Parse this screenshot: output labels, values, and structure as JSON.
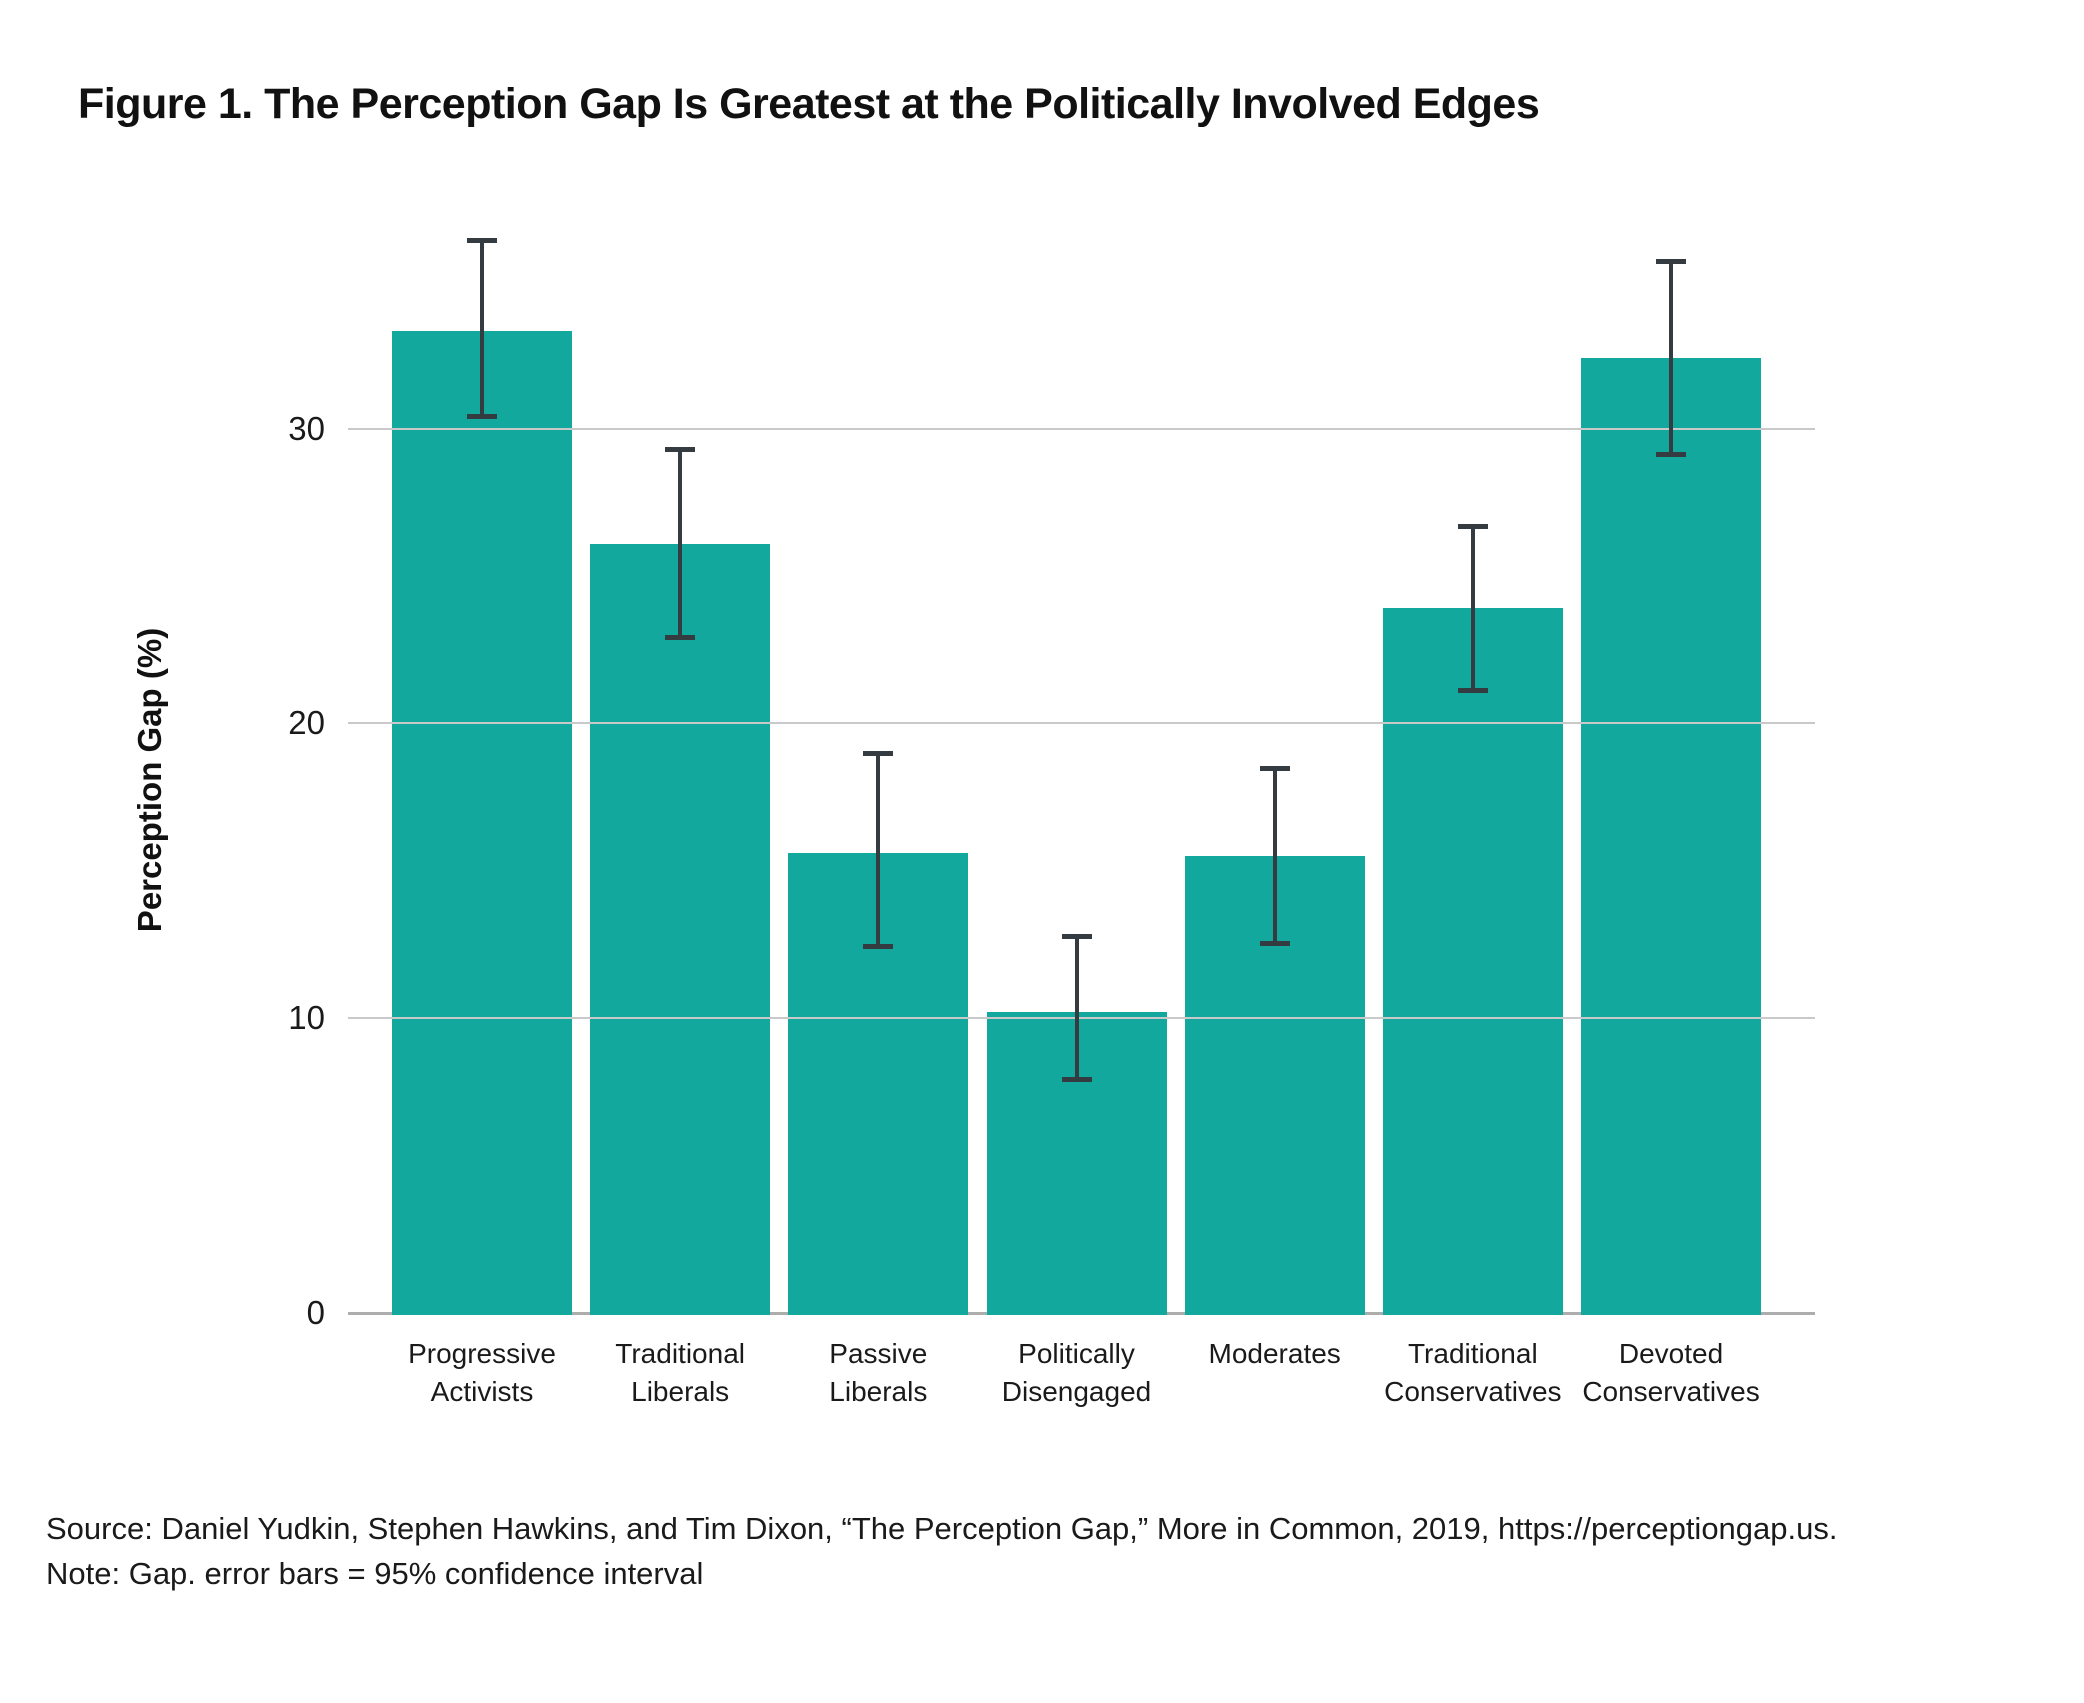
{
  "title": "Figure 1. The Perception Gap Is Greatest at the Politically Involved Edges",
  "footer": {
    "source": "Source: Daniel Yudkin, Stephen Hawkins, and Tim Dixon, “The Perception Gap,” More in Common, 2019, https://perceptiongap.us.",
    "note": "Note: Gap. error bars = 95% confidence interval"
  },
  "colors": {
    "bar": "#13a89e",
    "error_bar": "#343b41",
    "gridline": "#c9c9c9",
    "axis_line": "#adadad",
    "text": "#1a1a1a"
  },
  "chart_data": {
    "type": "bar",
    "title": "Figure 1. The Perception Gap Is Greatest at the Politically Involved Edges",
    "xlabel": "",
    "ylabel": "Perception Gap (%)",
    "ylim": [
      0,
      37.5
    ],
    "yticks": [
      0,
      10,
      20,
      30
    ],
    "grid": "horizontal",
    "legend": "none",
    "error_bars": "95% confidence interval",
    "categories": [
      "Progressive\nActivists",
      "Traditional\nLiberals",
      "Passive\nLiberals",
      "Politically\nDisengaged",
      "Moderates",
      "Traditional\nConservatives",
      "Devoted\nConservatives"
    ],
    "values": [
      33.3,
      26.1,
      15.6,
      10.2,
      15.5,
      23.9,
      32.4
    ],
    "ci_low": [
      30.4,
      22.9,
      12.4,
      7.9,
      12.5,
      21.1,
      29.1
    ],
    "ci_high": [
      36.4,
      29.3,
      19.0,
      12.8,
      18.5,
      26.7,
      35.7
    ]
  }
}
